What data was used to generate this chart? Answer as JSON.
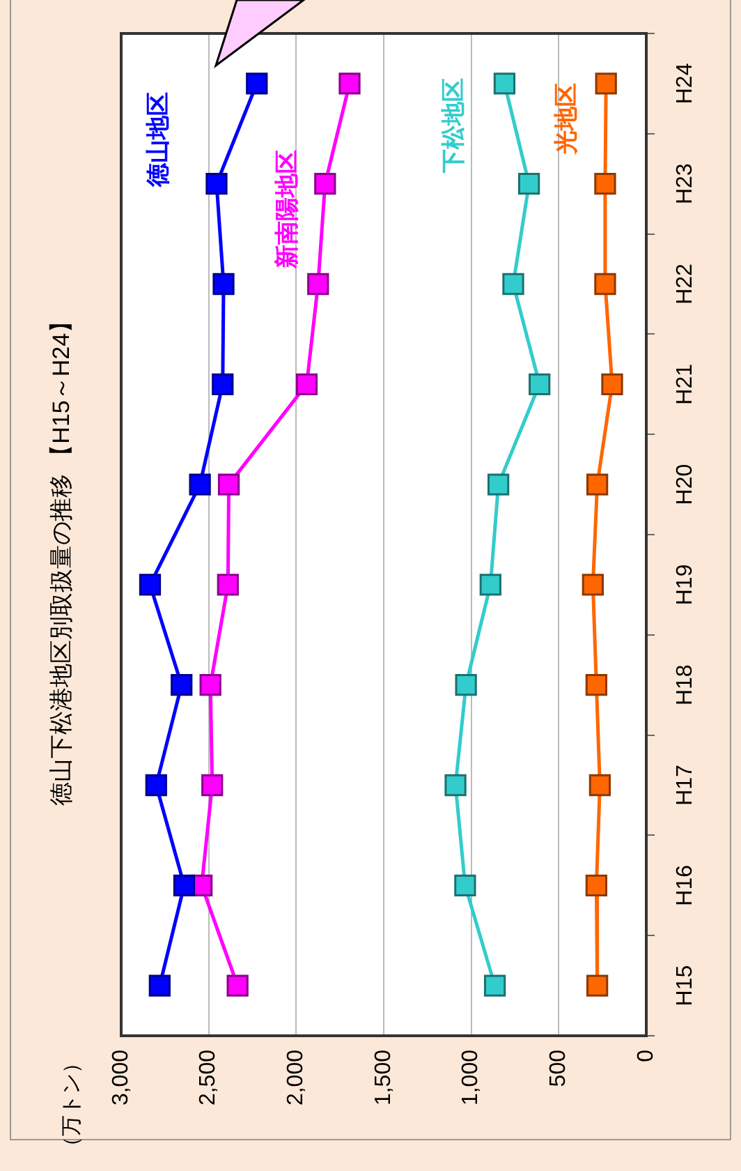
{
  "chart_data": {
    "type": "line",
    "orientation": "horizontal",
    "title": "徳山下松港地区別取扱量の推移 【H15～H24】",
    "annotations": [
      "（万トン）"
    ],
    "categories": [
      "H24",
      "H23",
      "H22",
      "H21",
      "H20",
      "H19",
      "H18",
      "H17",
      "H16",
      "H15"
    ],
    "series": [
      {
        "name": "徳山地区",
        "color": "#0000ff",
        "values": [
          2225,
          2455,
          2415,
          2420,
          2550,
          2835,
          2655,
          2800,
          2640,
          2780
        ]
      },
      {
        "name": "新南陽地区",
        "color": "#ff00ff",
        "values": [
          1695,
          1835,
          1875,
          1940,
          2385,
          2390,
          2490,
          2480,
          2540,
          2335
        ]
      },
      {
        "name": "下松地区",
        "color": "#33cccc",
        "values": [
          810,
          670,
          760,
          610,
          845,
          890,
          1030,
          1090,
          1035,
          865
        ]
      },
      {
        "name": "光地区",
        "color": "#ff6600",
        "values": [
          230,
          235,
          235,
          195,
          280,
          305,
          285,
          265,
          285,
          280
        ]
      }
    ],
    "xlim": [
      3000,
      0
    ],
    "xticks": [
      {
        "value": 3000,
        "label": "3,000"
      },
      {
        "value": 2500,
        "label": "2,500"
      },
      {
        "value": 2000,
        "label": "2,000"
      },
      {
        "value": 1500,
        "label": "1,500"
      },
      {
        "value": 1000,
        "label": "1,000"
      },
      {
        "value": 500,
        "label": "500"
      },
      {
        "value": 0,
        "label": "0"
      }
    ],
    "grid": "x",
    "legend": false,
    "marker": "square",
    "line_style": "solid"
  }
}
